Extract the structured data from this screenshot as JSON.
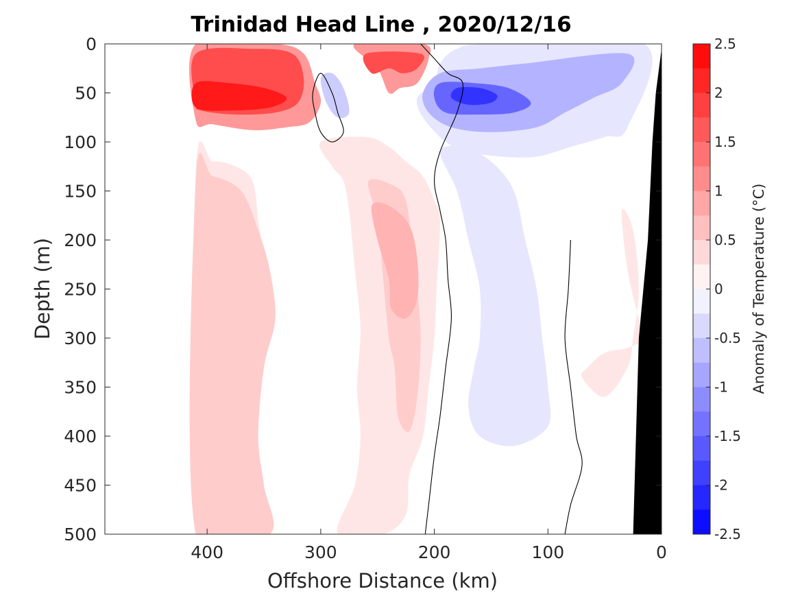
{
  "chart_data": {
    "type": "heatmap",
    "title": "Trinidad Head Line , 2020/12/16",
    "xlabel": "Offshore Distance (km)",
    "ylabel": "Depth (m)",
    "xlim": [
      490,
      0
    ],
    "ylim": [
      0,
      500
    ],
    "x_ticks": [
      400,
      300,
      200,
      100,
      0
    ],
    "y_ticks": [
      0,
      50,
      100,
      150,
      200,
      250,
      300,
      350,
      400,
      450,
      500
    ],
    "x_tick_labels": [
      "400",
      "300",
      "200",
      "100",
      "0"
    ],
    "y_tick_labels": [
      "0",
      "50",
      "100",
      "150",
      "200",
      "250",
      "300",
      "350",
      "400",
      "450",
      "500"
    ],
    "colorbar": {
      "label": "Anomaly of Temperature (°C)",
      "range": [
        -2.5,
        2.5
      ],
      "tick_values": [
        2.5,
        2,
        1.5,
        1,
        0.5,
        0,
        -0.5,
        -1,
        -1.5,
        -2,
        -2.5
      ],
      "tick_labels": [
        "2.5",
        "2",
        "1.5",
        "1",
        "0.5",
        "0",
        "-0.5",
        "-1",
        "-1.5",
        "-2",
        "-2.5"
      ],
      "levels": [
        2.5,
        2.25,
        2.0,
        1.75,
        1.5,
        1.25,
        1.0,
        0.75,
        0.5,
        0.25,
        0,
        -0.25,
        -0.5,
        -0.75,
        -1.0,
        -1.25,
        -1.5,
        -1.75,
        -2.0,
        -2.25,
        -2.5
      ]
    },
    "regions": [
      {
        "name": "warm-deep-column-west",
        "anomaly": 0.25,
        "points": [
          [
            410,
            130
          ],
          [
            395,
            120
          ],
          [
            375,
            125
          ],
          [
            360,
            140
          ],
          [
            355,
            180
          ],
          [
            350,
            230
          ],
          [
            360,
            260
          ],
          [
            375,
            320
          ],
          [
            385,
            380
          ],
          [
            390,
            430
          ],
          [
            380,
            480
          ],
          [
            370,
            500
          ],
          [
            410,
            500
          ]
        ]
      },
      {
        "name": "warm-deep-column-east",
        "anomaly": 0.25,
        "points": [
          [
            300,
            100
          ],
          [
            290,
            125
          ],
          [
            280,
            140
          ],
          [
            275,
            170
          ],
          [
            270,
            230
          ],
          [
            265,
            290
          ],
          [
            268,
            350
          ],
          [
            265,
            400
          ],
          [
            270,
            450
          ],
          [
            285,
            500
          ],
          [
            245,
            500
          ],
          [
            225,
            480
          ],
          [
            222,
            440
          ],
          [
            210,
            400
          ],
          [
            205,
            350
          ],
          [
            200,
            300
          ],
          [
            198,
            250
          ],
          [
            195,
            180
          ],
          [
            200,
            160
          ],
          [
            210,
            135
          ],
          [
            225,
            120
          ],
          [
            240,
            105
          ],
          [
            260,
            95
          ]
        ]
      },
      {
        "name": "warm-subsurface-west",
        "anomaly": 0.5,
        "points": [
          [
            410,
            140
          ],
          [
            395,
            135
          ],
          [
            370,
            150
          ],
          [
            355,
            190
          ],
          [
            345,
            230
          ],
          [
            340,
            280
          ],
          [
            350,
            330
          ],
          [
            355,
            400
          ],
          [
            350,
            450
          ],
          [
            345,
            500
          ],
          [
            410,
            500
          ]
        ]
      },
      {
        "name": "warm-subsurface-east",
        "anomaly": 0.5,
        "points": [
          [
            258,
            140
          ],
          [
            250,
            180
          ],
          [
            245,
            240
          ],
          [
            240,
            300
          ],
          [
            235,
            330
          ],
          [
            232,
            380
          ],
          [
            222,
            395
          ],
          [
            215,
            360
          ],
          [
            212,
            300
          ],
          [
            215,
            250
          ],
          [
            220,
            200
          ],
          [
            225,
            160
          ],
          [
            235,
            145
          ]
        ]
      },
      {
        "name": "warm-core-east",
        "anomaly": 0.75,
        "points": [
          [
            255,
            165
          ],
          [
            250,
            200
          ],
          [
            240,
            240
          ],
          [
            238,
            270
          ],
          [
            225,
            280
          ],
          [
            215,
            260
          ],
          [
            215,
            220
          ],
          [
            222,
            185
          ],
          [
            240,
            165
          ]
        ]
      },
      {
        "name": "warm-surface-west",
        "anomaly": 1.0,
        "points": [
          [
            410,
            0
          ],
          [
            340,
            0
          ],
          [
            315,
            10
          ],
          [
            305,
            40
          ],
          [
            300,
            60
          ],
          [
            310,
            80
          ],
          [
            330,
            85
          ],
          [
            360,
            88
          ],
          [
            395,
            82
          ],
          [
            410,
            78
          ]
        ]
      },
      {
        "name": "warm-surface-west-core",
        "anomaly": 1.75,
        "points": [
          [
            410,
            10
          ],
          [
            360,
            5
          ],
          [
            325,
            10
          ],
          [
            315,
            35
          ],
          [
            320,
            60
          ],
          [
            340,
            70
          ],
          [
            375,
            72
          ],
          [
            405,
            68
          ],
          [
            410,
            60
          ]
        ]
      },
      {
        "name": "warm-surface-west-max",
        "anomaly": 2.25,
        "points": [
          [
            410,
            40
          ],
          [
            380,
            40
          ],
          [
            350,
            45
          ],
          [
            330,
            55
          ],
          [
            345,
            65
          ],
          [
            380,
            68
          ],
          [
            410,
            65
          ]
        ]
      },
      {
        "name": "warm-surface-mid",
        "anomaly": 1.0,
        "points": [
          [
            270,
            0
          ],
          [
            250,
            25
          ],
          [
            240,
            50
          ],
          [
            230,
            45
          ],
          [
            215,
            40
          ],
          [
            205,
            15
          ],
          [
            210,
            0
          ]
        ]
      },
      {
        "name": "warm-surface-mid-core",
        "anomaly": 1.75,
        "points": [
          [
            260,
            10
          ],
          [
            255,
            30
          ],
          [
            240,
            25
          ],
          [
            228,
            30
          ],
          [
            215,
            25
          ],
          [
            212,
            10
          ]
        ]
      },
      {
        "name": "cool-surface-east",
        "anomaly": -0.25,
        "points": [
          [
            195,
            20
          ],
          [
            200,
            40
          ],
          [
            215,
            55
          ],
          [
            210,
            75
          ],
          [
            190,
            100
          ],
          [
            170,
            110
          ],
          [
            140,
            115
          ],
          [
            110,
            115
          ],
          [
            80,
            105
          ],
          [
            50,
            95
          ],
          [
            30,
            85
          ],
          [
            15,
            0
          ],
          [
            150,
            0
          ],
          [
            180,
            5
          ]
        ]
      },
      {
        "name": "cool-surface-east-mid",
        "anomaly": -0.75,
        "points": [
          [
            195,
            30
          ],
          [
            210,
            50
          ],
          [
            205,
            70
          ],
          [
            185,
            85
          ],
          [
            150,
            90
          ],
          [
            110,
            85
          ],
          [
            85,
            70
          ],
          [
            60,
            55
          ],
          [
            35,
            40
          ],
          [
            30,
            10
          ],
          [
            120,
            20
          ],
          [
            160,
            25
          ]
        ]
      },
      {
        "name": "cool-surface-east-core",
        "anomaly": -1.5,
        "points": [
          [
            195,
            40
          ],
          [
            200,
            55
          ],
          [
            190,
            70
          ],
          [
            160,
            72
          ],
          [
            130,
            70
          ],
          [
            115,
            60
          ],
          [
            135,
            45
          ],
          [
            165,
            40
          ]
        ]
      },
      {
        "name": "cool-surface-east-max",
        "anomaly": -2.0,
        "points": [
          [
            180,
            45
          ],
          [
            185,
            55
          ],
          [
            170,
            62
          ],
          [
            150,
            60
          ],
          [
            145,
            52
          ],
          [
            160,
            45
          ]
        ]
      },
      {
        "name": "cool-deep-east",
        "anomaly": -0.25,
        "points": [
          [
            195,
            110
          ],
          [
            180,
            150
          ],
          [
            170,
            200
          ],
          [
            160,
            250
          ],
          [
            160,
            300
          ],
          [
            165,
            330
          ],
          [
            170,
            370
          ],
          [
            160,
            400
          ],
          [
            130,
            410
          ],
          [
            100,
            390
          ],
          [
            100,
            350
          ],
          [
            105,
            300
          ],
          [
            110,
            250
          ],
          [
            120,
            200
          ],
          [
            130,
            150
          ],
          [
            150,
            120
          ],
          [
            175,
            105
          ]
        ]
      },
      {
        "name": "cool-pocket-mid",
        "anomaly": -0.5,
        "points": [
          [
            300,
            35
          ],
          [
            295,
            60
          ],
          [
            285,
            75
          ],
          [
            275,
            70
          ],
          [
            280,
            45
          ],
          [
            290,
            30
          ]
        ]
      },
      {
        "name": "warm-nearshore",
        "anomaly": 0.25,
        "points": [
          [
            35,
            170
          ],
          [
            30,
            230
          ],
          [
            20,
            280
          ],
          [
            15,
            300
          ],
          [
            30,
            310
          ],
          [
            50,
            315
          ],
          [
            65,
            330
          ],
          [
            70,
            340
          ],
          [
            50,
            360
          ],
          [
            30,
            330
          ],
          [
            25,
            300
          ],
          [
            20,
            250
          ],
          [
            25,
            190
          ]
        ]
      }
    ],
    "contour_zero": [
      {
        "name": "zero-contour-main",
        "points": [
          [
            212,
            0
          ],
          [
            200,
            15
          ],
          [
            188,
            30
          ],
          [
            175,
            40
          ],
          [
            180,
            70
          ],
          [
            195,
            110
          ],
          [
            200,
            140
          ],
          [
            195,
            170
          ],
          [
            190,
            200
          ],
          [
            188,
            240
          ],
          [
            185,
            280
          ],
          [
            190,
            330
          ],
          [
            195,
            380
          ],
          [
            200,
            420
          ],
          [
            205,
            470
          ],
          [
            208,
            500
          ]
        ]
      },
      {
        "name": "zero-contour-pocket",
        "points": [
          [
            300,
            30
          ],
          [
            290,
            50
          ],
          [
            285,
            70
          ],
          [
            280,
            90
          ],
          [
            290,
            100
          ],
          [
            300,
            90
          ],
          [
            305,
            70
          ],
          [
            307,
            50
          ]
        ]
      },
      {
        "name": "zero-contour-nearshore",
        "points": [
          [
            80,
            200
          ],
          [
            82,
            250
          ],
          [
            85,
            300
          ],
          [
            80,
            350
          ],
          [
            75,
            400
          ],
          [
            70,
            430
          ],
          [
            80,
            470
          ],
          [
            85,
            500
          ]
        ]
      }
    ],
    "bathymetry": {
      "name": "seafloor",
      "points": [
        [
          0,
          5
        ],
        [
          0,
          500
        ],
        [
          25,
          500
        ],
        [
          20,
          300
        ],
        [
          12,
          200
        ],
        [
          8,
          100
        ],
        [
          5,
          50
        ]
      ]
    }
  }
}
